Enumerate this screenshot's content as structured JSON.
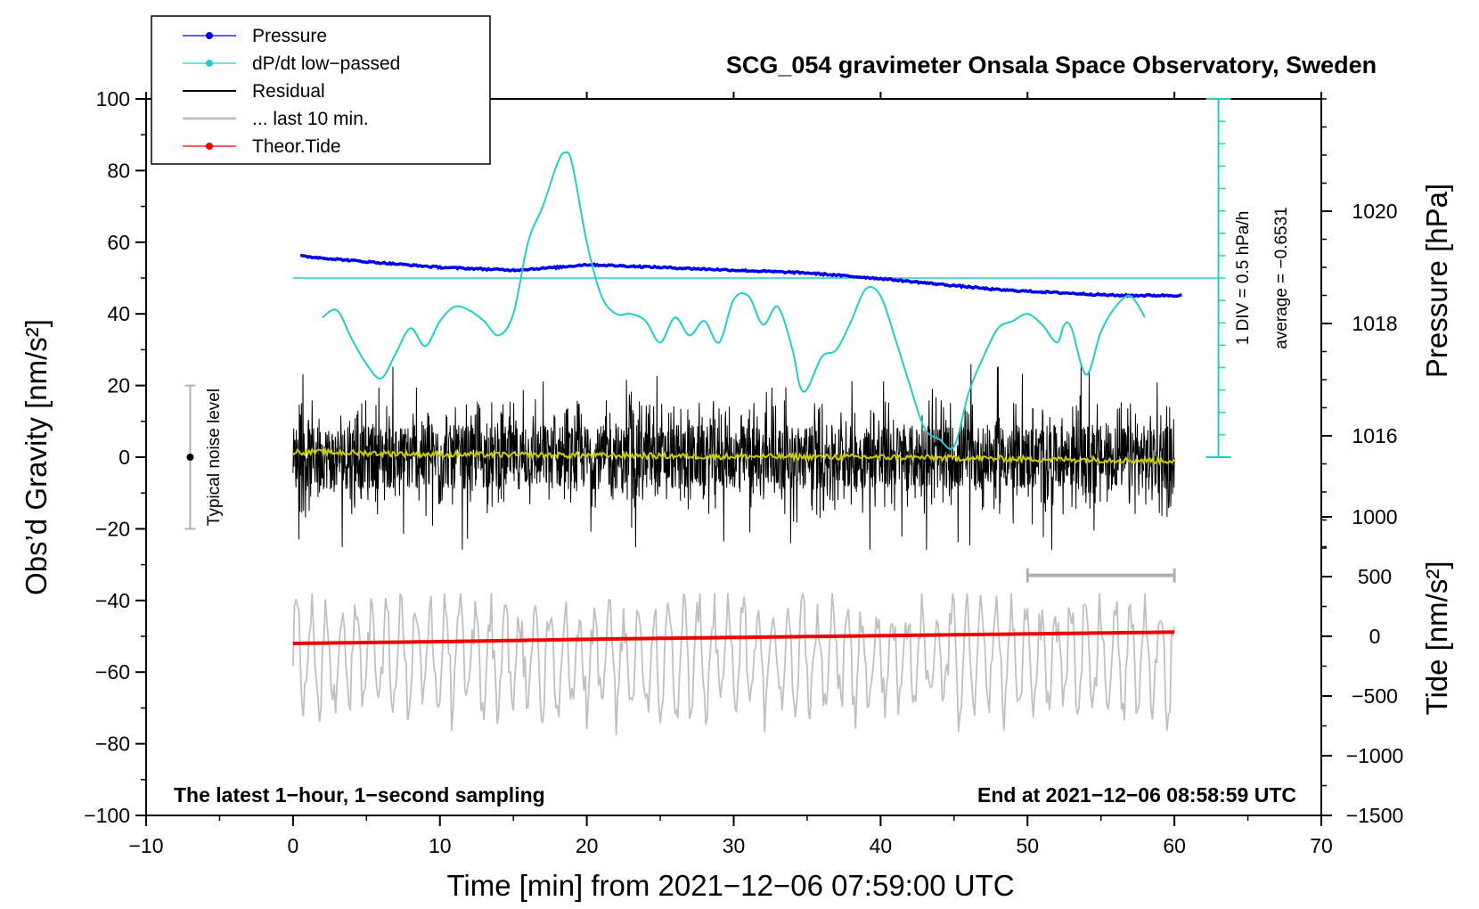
{
  "chart_data": {
    "type": "line",
    "title": "SCG_054 gravimeter Onsala Space Observatory, Sweden",
    "xlabel": "Time [min] from 2021−12−06 07:59:00 UTC",
    "ylabel": "Obs’d Gravity [nm/s²]",
    "ylabel_right_top": "Pressure [hPa]",
    "ylabel_right_bottom": "Tide [nm/s²]",
    "xlim": [
      -10,
      70
    ],
    "ylim": [
      -100,
      100
    ],
    "pressure_axis_range": [
      1014,
      1022
    ],
    "tide_axis_range": [
      -1500,
      1000
    ],
    "x_ticks": [
      {
        "value": -10,
        "label": "−10"
      },
      {
        "value": 0,
        "label": "0"
      },
      {
        "value": 10,
        "label": "10"
      },
      {
        "value": 20,
        "label": "20"
      },
      {
        "value": 30,
        "label": "30"
      },
      {
        "value": 40,
        "label": "40"
      },
      {
        "value": 50,
        "label": "50"
      },
      {
        "value": 60,
        "label": "60"
      },
      {
        "value": 70,
        "label": "70"
      }
    ],
    "y_ticks": [
      {
        "value": 100,
        "label": "100"
      },
      {
        "value": 80,
        "label": "80"
      },
      {
        "value": 60,
        "label": "60"
      },
      {
        "value": 40,
        "label": "40"
      },
      {
        "value": 20,
        "label": "20"
      },
      {
        "value": 0,
        "label": "0"
      },
      {
        "value": -20,
        "label": "−20"
      },
      {
        "value": -40,
        "label": "−40"
      },
      {
        "value": -60,
        "label": "−60"
      },
      {
        "value": -80,
        "label": "−80"
      },
      {
        "value": -100,
        "label": "−100"
      }
    ],
    "pressure_ticks": [
      {
        "value": 1020,
        "label": "1020"
      },
      {
        "value": 1018,
        "label": "1018"
      },
      {
        "value": 1016,
        "label": "1016"
      }
    ],
    "tide_ticks": [
      {
        "value": 1000,
        "label": "1000"
      },
      {
        "value": 500,
        "label": "500"
      },
      {
        "value": 0,
        "label": "0"
      },
      {
        "value": -500,
        "label": "−500"
      },
      {
        "value": -1000,
        "label": "−1000"
      },
      {
        "value": -1500,
        "label": "−1500"
      }
    ],
    "legend": [
      {
        "label": "Pressure",
        "color": "#0000ee",
        "marker": true
      },
      {
        "label": "dP/dt low−passed",
        "color": "#22cccc",
        "marker": true
      },
      {
        "label": "Residual",
        "color": "#000000",
        "marker": false
      },
      {
        "label": "... last 10 min.",
        "color": "#c0c0c0",
        "marker": false
      },
      {
        "label": "Theor.Tide",
        "color": "#ee0000",
        "marker": true
      }
    ],
    "series": [
      {
        "name": "Pressure",
        "axis": "pressure_hPa",
        "color": "#0000ee",
        "x": [
          0.5,
          5,
          10,
          15,
          18,
          20,
          25,
          30,
          35,
          40,
          44,
          48,
          52,
          56,
          60.5
        ],
        "values": [
          1019.2,
          1019.1,
          1019.0,
          1018.95,
          1019.0,
          1019.05,
          1019.0,
          1018.95,
          1018.9,
          1018.8,
          1018.7,
          1018.6,
          1018.55,
          1018.5,
          1018.5
        ]
      },
      {
        "name": "dP/dt low−passed",
        "axis": "gravity_scaled",
        "color": "#22cccc",
        "x": [
          2,
          3,
          4,
          5,
          6,
          7,
          8,
          9,
          10,
          11,
          12,
          13,
          14,
          15,
          16,
          17,
          18,
          18.5,
          19,
          20,
          21,
          22,
          23,
          24,
          25,
          26,
          27,
          28,
          29,
          30,
          31,
          32,
          33,
          34,
          34.5,
          35,
          36,
          37,
          38,
          39,
          40,
          41,
          42,
          43,
          44,
          45,
          46,
          47,
          48,
          49,
          50,
          51,
          52,
          52.5,
          53,
          54,
          55,
          56,
          57,
          58
        ],
        "values": [
          39,
          41,
          33,
          26,
          22,
          29,
          36,
          31,
          38,
          42,
          41,
          38,
          34,
          40,
          60,
          70,
          82,
          85,
          82,
          60,
          45,
          40,
          40,
          38,
          32,
          39,
          34,
          38,
          32,
          44,
          45,
          37,
          42,
          30,
          20,
          19,
          28,
          30,
          38,
          47,
          45,
          33,
          20,
          8,
          5,
          3,
          18,
          28,
          36,
          38,
          40,
          37,
          32,
          37,
          36,
          23,
          35,
          42,
          45,
          39
        ]
      },
      {
        "name": "Residual",
        "axis": "gravity",
        "color": "#000000",
        "x": [
          0,
          10,
          20,
          30,
          40,
          50,
          60
        ],
        "values": [
          0,
          0,
          0,
          0,
          0,
          0,
          0
        ],
        "approx_range": [
          -28,
          27
        ]
      },
      {
        "name": "Residual low-passed",
        "axis": "gravity",
        "color": "#cccc00",
        "x": [
          0,
          10,
          20,
          30,
          40,
          50,
          60
        ],
        "values": [
          1.5,
          0.8,
          0.5,
          0.2,
          0,
          -0.5,
          -1
        ]
      },
      {
        "name": "... last 10 min.",
        "axis": "gravity",
        "color": "#c0c0c0",
        "x": [
          0,
          60
        ],
        "values": [
          -56,
          -56
        ],
        "approx_range": [
          -89,
          -38
        ]
      },
      {
        "name": "Theor.Tide",
        "axis": "tide",
        "color": "#ee0000",
        "x": [
          0,
          10,
          20,
          30,
          40,
          50,
          60
        ],
        "values": [
          -60,
          -45,
          -25,
          -10,
          5,
          20,
          35
        ]
      }
    ],
    "annotations": {
      "bottom_left": "The latest 1−hour, 1−second sampling",
      "bottom_right": "End at 2021−12−06 08:58:59 UTC",
      "noise_label": "Typical noise level",
      "noise_range": [
        -20,
        20
      ],
      "scale_div": "1 DIV = 0.5 hPa/h",
      "scale_average": "average = −0.6531",
      "last10_bracket": [
        50,
        60
      ]
    }
  }
}
